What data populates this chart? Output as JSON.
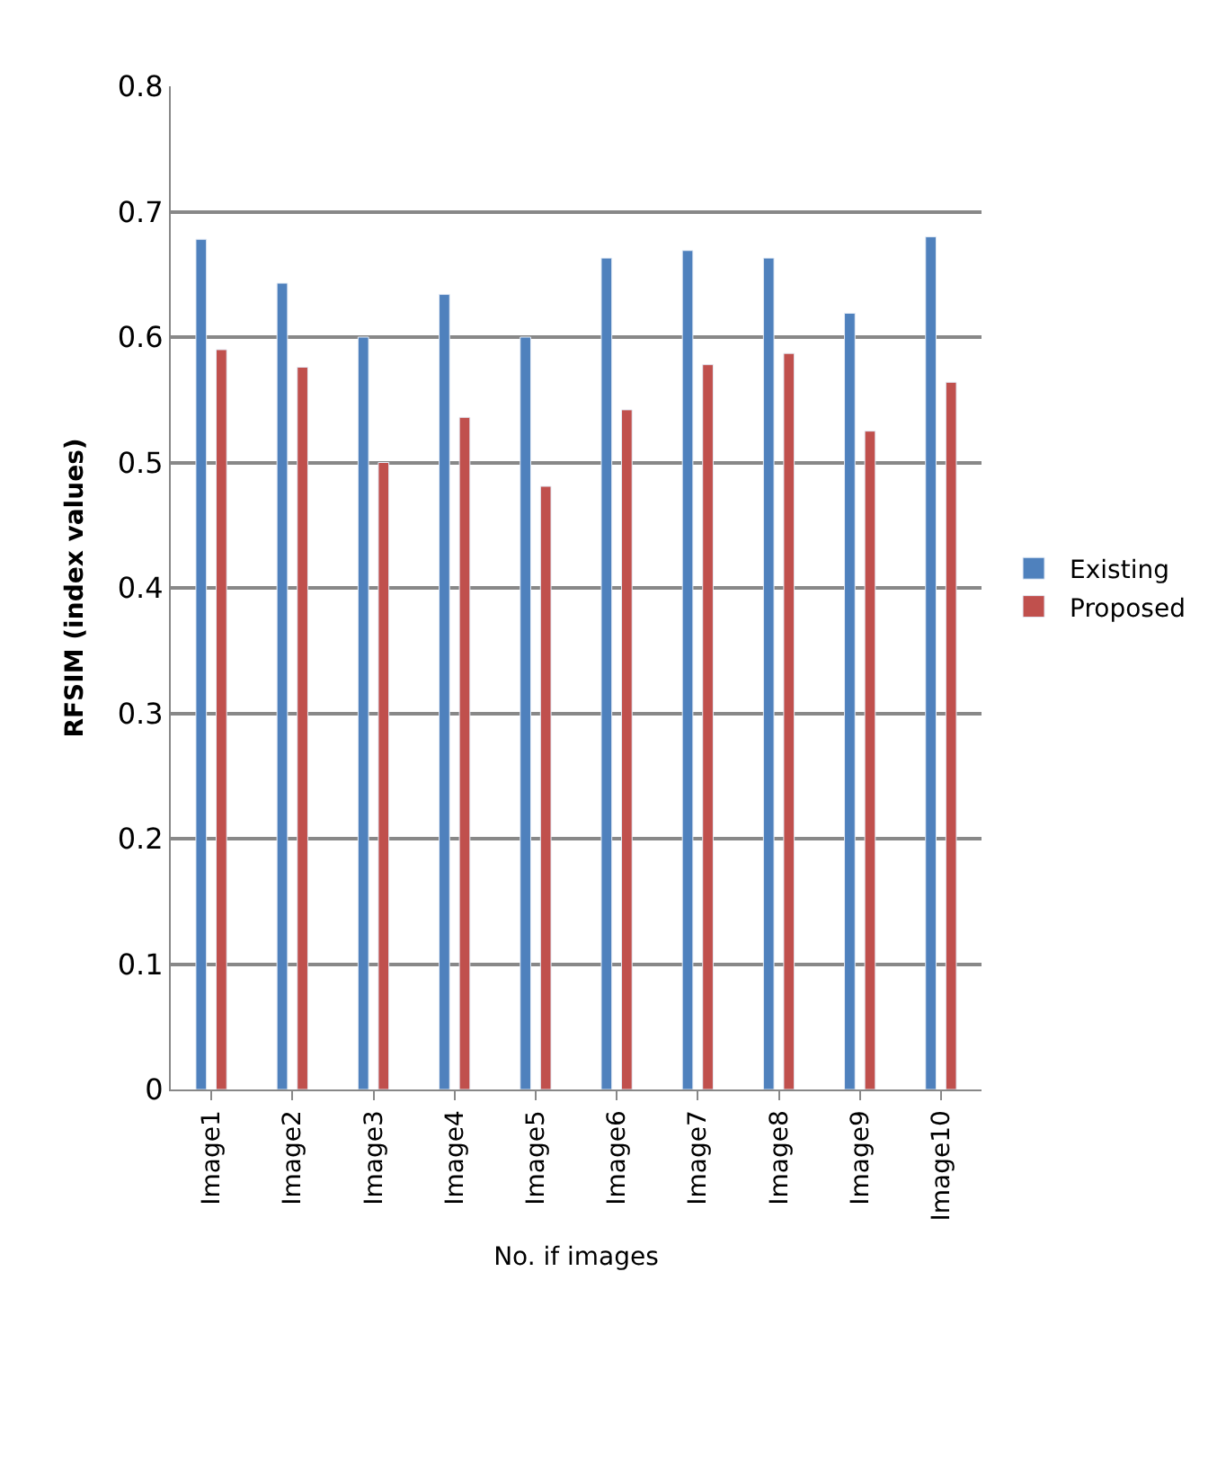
{
  "chart_data": {
    "type": "bar",
    "xlabel": "No. if images",
    "ylabel": "RFSIM (index values)",
    "categories": [
      "Image1",
      "Image2",
      "Image3",
      "Image4",
      "Image5",
      "Image6",
      "Image7",
      "Image8",
      "Image9",
      "Image10"
    ],
    "series": [
      {
        "name": "Existing",
        "color": "#4f81bd",
        "values": [
          0.678,
          0.643,
          0.6,
          0.634,
          0.6,
          0.663,
          0.669,
          0.663,
          0.619,
          0.68
        ]
      },
      {
        "name": "Proposed",
        "color": "#c0504d",
        "values": [
          0.59,
          0.576,
          0.5,
          0.536,
          0.481,
          0.542,
          0.578,
          0.587,
          0.525,
          0.564
        ]
      }
    ],
    "ylim": [
      0,
      0.8
    ],
    "yticks": [
      0,
      0.1,
      0.2,
      0.3,
      0.4,
      0.5,
      0.6,
      0.7,
      0.8
    ],
    "grid": "y",
    "legend": "right"
  }
}
